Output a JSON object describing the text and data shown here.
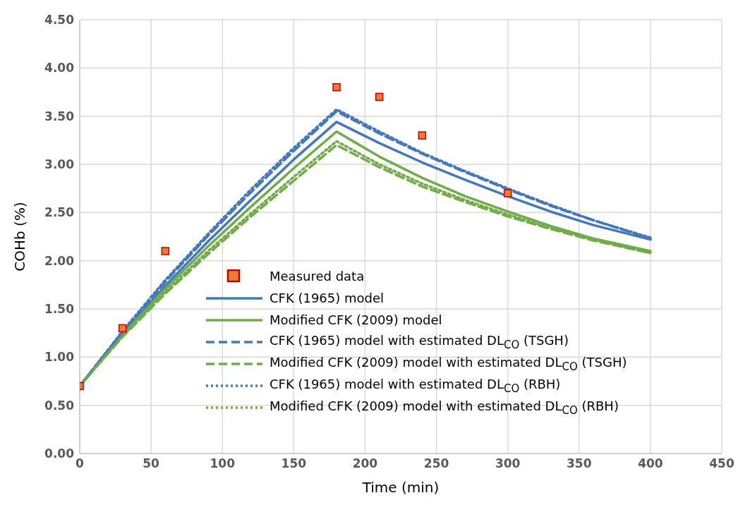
{
  "chart_data": {
    "type": "line",
    "xlabel": "Time (min)",
    "ylabel": "COHb (%)",
    "xlim": [
      0,
      450
    ],
    "xticks": [
      0,
      50,
      100,
      150,
      200,
      250,
      300,
      350,
      400,
      450
    ],
    "ylim": [
      0,
      4.5
    ],
    "yticks": [
      {
        "value": 0,
        "label": "0.00"
      },
      {
        "value": 0.5,
        "label": "0.50"
      },
      {
        "value": 1,
        "label": "1.00"
      },
      {
        "value": 1.5,
        "label": "1.50"
      },
      {
        "value": 2,
        "label": "2.00"
      },
      {
        "value": 2.5,
        "label": "2.50"
      },
      {
        "value": 3,
        "label": "3.00"
      },
      {
        "value": 3.5,
        "label": "3.50"
      },
      {
        "value": 4,
        "label": "4.00"
      },
      {
        "value": 4.5,
        "label": "4.50"
      }
    ],
    "grid": true,
    "legend": "bottom",
    "marker": "none",
    "series": [
      {
        "name": "Measured data",
        "type": "scatter",
        "marker": "square",
        "color": "#ed7d31",
        "x": [
          0,
          30,
          60,
          180,
          210,
          240,
          300
        ],
        "values": [
          0.7,
          1.3,
          2.1,
          3.8,
          3.7,
          3.3,
          2.7
        ]
      },
      {
        "name": "CFK (1965) model",
        "color": "#4178c0",
        "line_style": "solid",
        "x": [
          0,
          30,
          60,
          90,
          120,
          150,
          180,
          210,
          240,
          270,
          300,
          330,
          360,
          400
        ],
        "values": [
          0.7,
          1.24,
          1.74,
          2.2,
          2.63,
          3.05,
          3.44,
          3.22,
          3.02,
          2.84,
          2.67,
          2.51,
          2.37,
          2.22
        ]
      },
      {
        "name": "Modified CFK (2009) model",
        "color": "#70ad47",
        "line_style": "solid",
        "x": [
          0,
          30,
          60,
          90,
          120,
          150,
          180,
          210,
          240,
          270,
          300,
          330,
          360,
          400
        ],
        "values": [
          0.7,
          1.23,
          1.71,
          2.15,
          2.56,
          2.96,
          3.34,
          3.08,
          2.86,
          2.67,
          2.51,
          2.36,
          2.23,
          2.1
        ]
      },
      {
        "name": "CFK (1965) model with estimated DL$_{CO}$ (TSGH)",
        "color": "#4178c0",
        "line_style": "dashed",
        "x": [
          0,
          30,
          60,
          90,
          120,
          150,
          180,
          210,
          240,
          270,
          300,
          330,
          360,
          400
        ],
        "values": [
          0.7,
          1.26,
          1.78,
          2.26,
          2.71,
          3.14,
          3.55,
          3.32,
          3.11,
          2.92,
          2.74,
          2.57,
          2.42,
          2.23
        ]
      },
      {
        "name": "Modified CFK (2009) model with estimated DL$_{CO}$ (TSGH)",
        "color": "#70ad47",
        "line_style": "dashed",
        "x": [
          0,
          30,
          60,
          90,
          120,
          150,
          180,
          210,
          240,
          270,
          300,
          330,
          360,
          400
        ],
        "values": [
          0.7,
          1.21,
          1.66,
          2.07,
          2.46,
          2.83,
          3.2,
          2.97,
          2.77,
          2.61,
          2.46,
          2.33,
          2.21,
          2.08
        ]
      },
      {
        "name": "CFK (1965) model with estimated DL$_{CO}$ (RBH)",
        "color": "#4178c0",
        "line_style": "dotted",
        "x": [
          0,
          30,
          60,
          90,
          120,
          150,
          180,
          210,
          240,
          270,
          300,
          330,
          360,
          400
        ],
        "values": [
          0.7,
          1.27,
          1.8,
          2.28,
          2.74,
          3.17,
          3.57,
          3.34,
          3.12,
          2.93,
          2.75,
          2.58,
          2.42,
          2.24
        ]
      },
      {
        "name": "Modified CFK (2009) model with estimated DL$_{CO}$ (RBH)",
        "color": "#70ad47",
        "line_style": "dotted",
        "x": [
          0,
          30,
          60,
          90,
          120,
          150,
          180,
          210,
          240,
          270,
          300,
          330,
          360,
          400
        ],
        "values": [
          0.7,
          1.22,
          1.68,
          2.1,
          2.49,
          2.87,
          3.24,
          3.0,
          2.8,
          2.63,
          2.48,
          2.34,
          2.22,
          2.08
        ]
      }
    ]
  }
}
